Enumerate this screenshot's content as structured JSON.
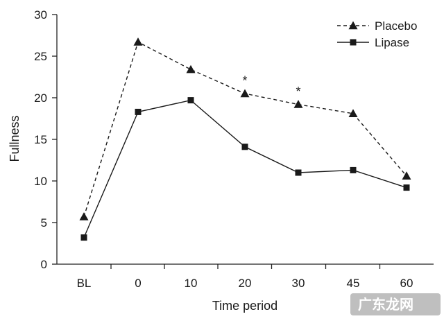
{
  "chart_data": {
    "type": "line",
    "title": "",
    "xlabel": "Time period",
    "ylabel": "Fullness",
    "ylim": [
      0,
      30
    ],
    "yticks": [
      0,
      5,
      10,
      15,
      20,
      25,
      30
    ],
    "categories": [
      "BL",
      "0",
      "10",
      "20",
      "30",
      "45",
      "60"
    ],
    "series": [
      {
        "name": "Placebo",
        "marker": "triangle",
        "style": "dashed",
        "values": [
          5.7,
          26.7,
          23.4,
          20.5,
          19.2,
          18.1,
          10.6
        ]
      },
      {
        "name": "Lipase",
        "marker": "square",
        "style": "solid",
        "values": [
          3.2,
          18.3,
          19.7,
          14.1,
          11.0,
          11.3,
          9.2
        ]
      }
    ],
    "annotations": [
      {
        "text": "*",
        "category": "20",
        "value": 22.3
      },
      {
        "text": "*",
        "category": "30",
        "value": 21.0
      }
    ],
    "legend": "top-right",
    "grid": false
  },
  "watermark": {
    "text": "广东龙网"
  }
}
